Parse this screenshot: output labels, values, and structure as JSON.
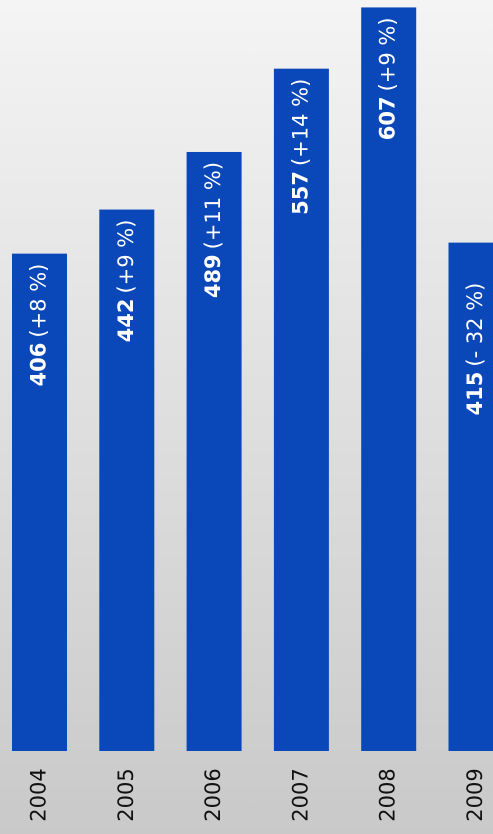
{
  "chart_data": {
    "type": "bar",
    "categories": [
      "2004",
      "2005",
      "2006",
      "2007",
      "2008",
      "2009"
    ],
    "values": [
      406,
      442,
      489,
      557,
      607,
      415
    ],
    "changes": [
      "(+8 %)",
      "(+9 %)",
      "(+11 %)",
      "(+14 %)",
      "(+9 %)",
      "(- 32 %)"
    ],
    "color": "#0a47b8"
  }
}
